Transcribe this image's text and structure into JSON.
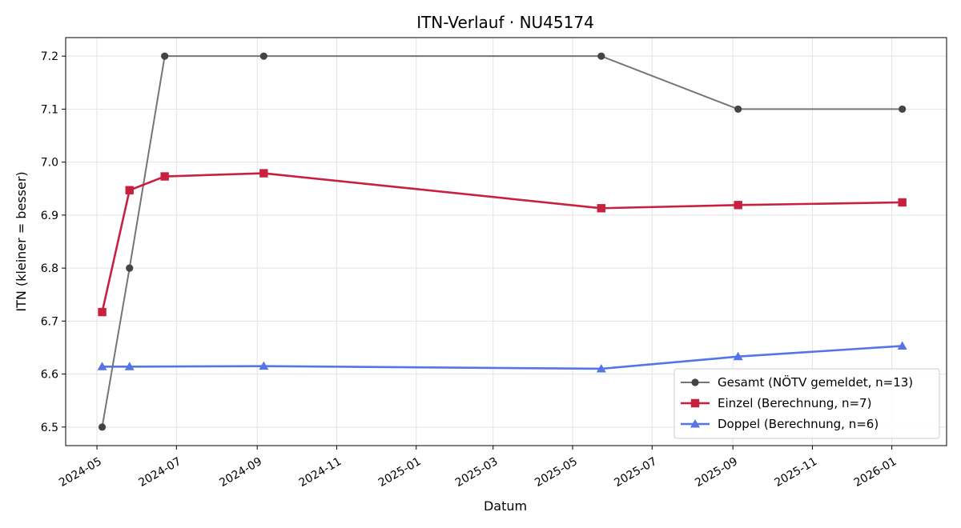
{
  "chart_data": {
    "type": "line",
    "title": "ITN-Verlauf · NU45174",
    "xlabel": "Datum",
    "ylabel": "ITN  (kleiner = besser)",
    "x_type": "date",
    "xlim": [
      "2024-04-07",
      "2026-02-12"
    ],
    "ylim": [
      6.465,
      7.235
    ],
    "x_ticks": [
      "2024-05-01",
      "2024-07-01",
      "2024-09-01",
      "2024-11-01",
      "2025-01-01",
      "2025-03-01",
      "2025-05-01",
      "2025-07-01",
      "2025-09-01",
      "2025-11-01",
      "2026-01-01"
    ],
    "x_tick_labels": [
      "2024-05",
      "2024-07",
      "2024-09",
      "2024-11",
      "2025-01",
      "2025-03",
      "2025-05",
      "2025-07",
      "2025-09",
      "2025-11",
      "2026-01"
    ],
    "y_ticks": [
      6.5,
      6.6,
      6.7,
      6.8,
      6.9,
      7.0,
      7.1,
      7.2
    ],
    "y_tick_labels": [
      "6.5",
      "6.6",
      "6.7",
      "6.8",
      "6.9",
      "7.0",
      "7.1",
      "7.2"
    ],
    "grid": true,
    "legend_position": "lower-right",
    "series": [
      {
        "name": "Gesamt (NÖTV gemeldet, n=13)",
        "color": "#757575",
        "marker_color": "#444444",
        "marker": "circle",
        "line_width": 2,
        "points": [
          {
            "x": "2024-05-05",
            "y": 6.5
          },
          {
            "x": "2024-05-26",
            "y": 6.8
          },
          {
            "x": "2024-06-22",
            "y": 7.2
          },
          {
            "x": "2024-09-06",
            "y": 7.2
          },
          {
            "x": "2025-05-23",
            "y": 7.2
          },
          {
            "x": "2025-09-05",
            "y": 7.1
          },
          {
            "x": "2026-01-09",
            "y": 7.1
          }
        ]
      },
      {
        "name": "Einzel (Berechnung, n=7)",
        "color": "#c8213f",
        "marker_color": "#c8213f",
        "marker": "square",
        "line_width": 2.6,
        "points": [
          {
            "x": "2024-05-05",
            "y": 6.717
          },
          {
            "x": "2024-05-26",
            "y": 6.947
          },
          {
            "x": "2024-06-22",
            "y": 6.973
          },
          {
            "x": "2024-09-06",
            "y": 6.979
          },
          {
            "x": "2025-05-23",
            "y": 6.913
          },
          {
            "x": "2025-09-05",
            "y": 6.919
          },
          {
            "x": "2026-01-09",
            "y": 6.924
          }
        ]
      },
      {
        "name": "Doppel (Berechnung, n=6)",
        "color": "#5574e8",
        "marker_color": "#5574e8",
        "marker": "triangle",
        "line_width": 2.6,
        "points": [
          {
            "x": "2024-05-05",
            "y": 6.614
          },
          {
            "x": "2024-05-26",
            "y": 6.614
          },
          {
            "x": "2024-09-06",
            "y": 6.615
          },
          {
            "x": "2025-05-23",
            "y": 6.61
          },
          {
            "x": "2025-09-05",
            "y": 6.633
          },
          {
            "x": "2026-01-09",
            "y": 6.653
          }
        ]
      }
    ]
  }
}
